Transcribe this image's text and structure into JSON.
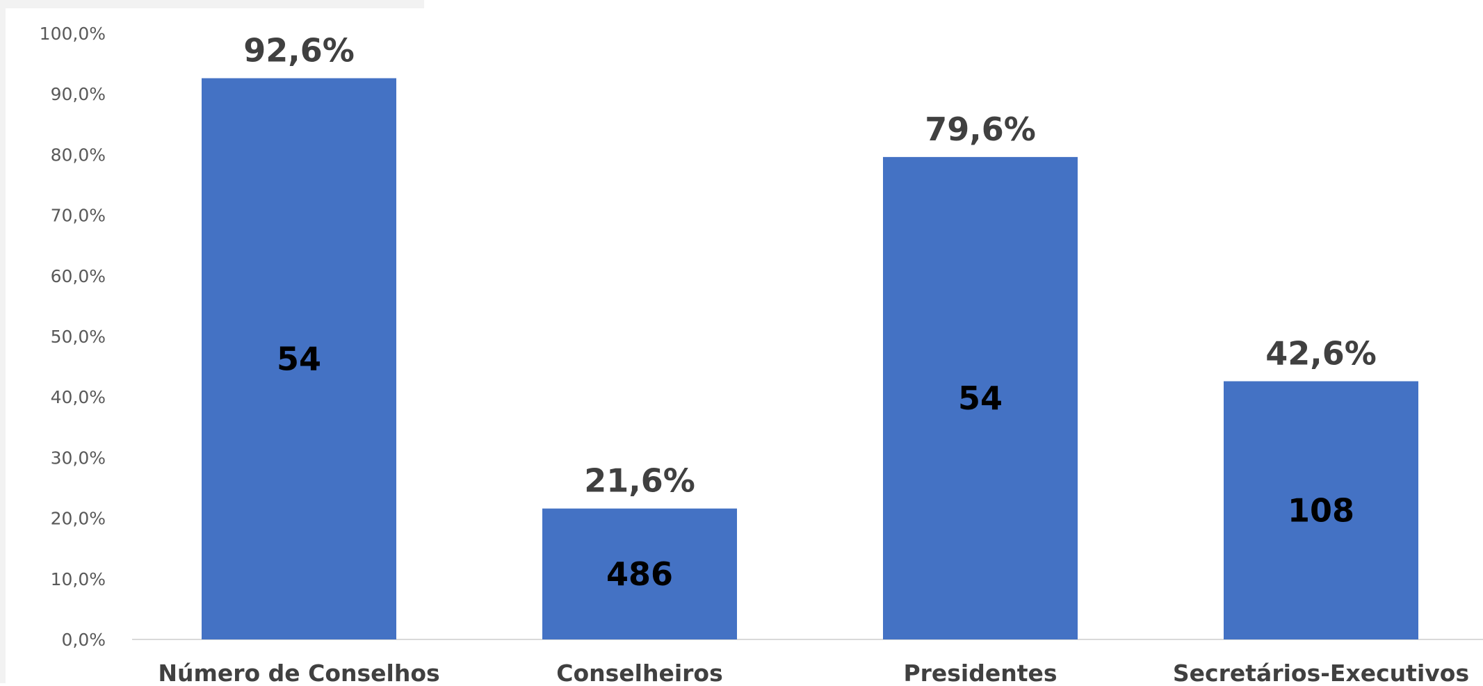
{
  "chart_data": {
    "type": "bar",
    "categories": [
      "Número de Conselhos",
      "Conselheiros",
      "Presidentes",
      "Secretários-Executivos"
    ],
    "values": [
      92.6,
      21.6,
      79.6,
      42.6
    ],
    "value_labels": [
      "92,6%",
      "21,6%",
      "79,6%",
      "42,6%"
    ],
    "inner_labels": [
      "54",
      "486",
      "54",
      "108"
    ],
    "y_ticks": [
      "0,0%",
      "10,0%",
      "20,0%",
      "30,0%",
      "40,0%",
      "50,0%",
      "60,0%",
      "70,0%",
      "80,0%",
      "90,0%",
      "100,0%"
    ],
    "ylim": [
      0,
      100
    ],
    "grid": false,
    "legend": "none",
    "title": "",
    "xlabel": "",
    "ylabel": "",
    "bar_color": "#4472C4"
  }
}
